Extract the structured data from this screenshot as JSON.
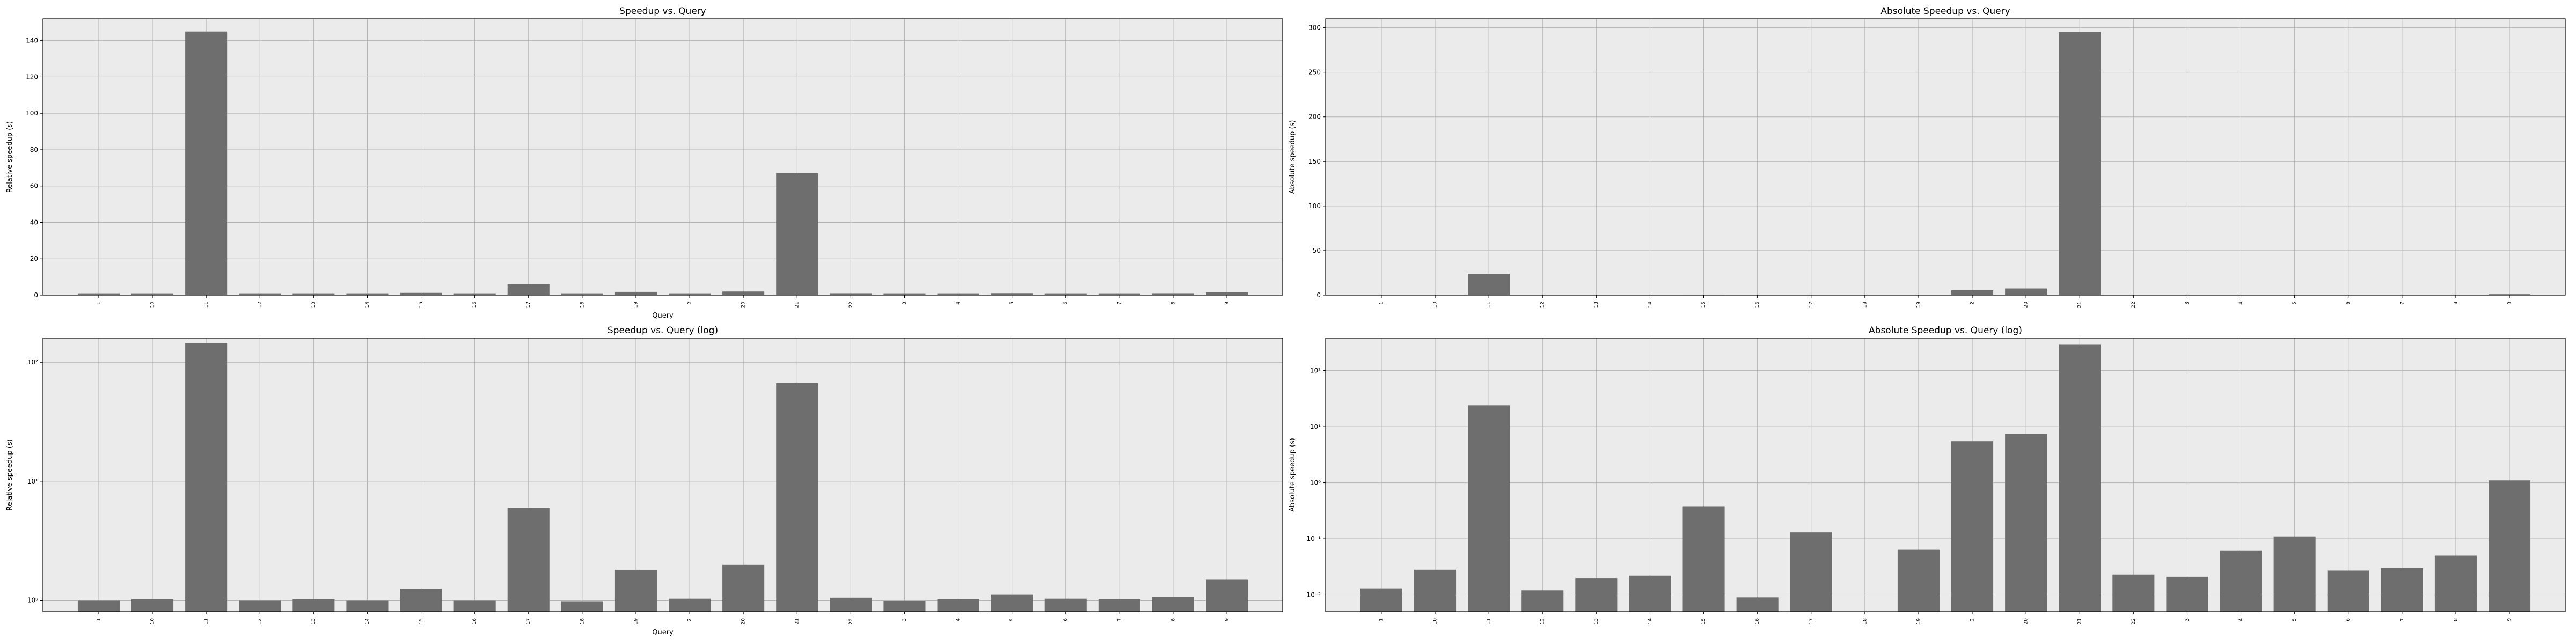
{
  "chart_data": [
    {
      "type": "bar",
      "title": "Speedup vs. Query",
      "xlabel": "Query",
      "ylabel": "Relative speedup (s)",
      "yscale": "linear",
      "ylim": [
        0,
        152
      ],
      "yticks": [
        0,
        20,
        40,
        60,
        80,
        100,
        120,
        140
      ],
      "grid": true,
      "categories": [
        "1",
        "10",
        "11",
        "12",
        "13",
        "14",
        "15",
        "16",
        "17",
        "18",
        "19",
        "2",
        "20",
        "21",
        "22",
        "3",
        "4",
        "5",
        "6",
        "7",
        "8",
        "9"
      ],
      "values": [
        1.0,
        1.0,
        145,
        1.0,
        1.0,
        1.0,
        1.25,
        1.0,
        6.0,
        1.0,
        1.8,
        1.0,
        2.0,
        67,
        1.05,
        1.0,
        1.0,
        1.1,
        1.0,
        1.0,
        1.05,
        1.5
      ]
    },
    {
      "type": "bar",
      "title": "Absolute Speedup vs. Query",
      "xlabel": "",
      "ylabel": "Absolute speedup (s)",
      "yscale": "linear",
      "ylim": [
        0,
        310
      ],
      "yticks": [
        0,
        50,
        100,
        150,
        200,
        250,
        300
      ],
      "grid": true,
      "categories": [
        "1",
        "10",
        "11",
        "12",
        "13",
        "14",
        "15",
        "16",
        "17",
        "18",
        "19",
        "2",
        "20",
        "21",
        "22",
        "3",
        "4",
        "5",
        "6",
        "7",
        "8",
        "9"
      ],
      "values": [
        0.013,
        0.028,
        24,
        0.012,
        0.02,
        0.022,
        0.38,
        0.009,
        0.13,
        0.005,
        0.065,
        5.5,
        7.5,
        295,
        0.023,
        0.021,
        0.062,
        0.11,
        0.027,
        0.03,
        0.05,
        1.1
      ]
    },
    {
      "type": "bar",
      "title": "Speedup vs. Query (log)",
      "xlabel": "Query",
      "ylabel": "Relative speedup (s)",
      "yscale": "log",
      "ylim": [
        0.8,
        160
      ],
      "yticks": [
        1,
        10,
        100
      ],
      "ytick_labels": [
        "10⁰",
        "10¹",
        "10²"
      ],
      "grid": true,
      "categories": [
        "1",
        "10",
        "11",
        "12",
        "13",
        "14",
        "15",
        "16",
        "17",
        "18",
        "19",
        "2",
        "20",
        "21",
        "22",
        "3",
        "4",
        "5",
        "6",
        "7",
        "8",
        "9"
      ],
      "values": [
        1.0,
        1.02,
        145,
        1.0,
        1.02,
        1.0,
        1.25,
        1.0,
        6.0,
        0.98,
        1.8,
        1.03,
        2.0,
        67,
        1.05,
        0.99,
        1.02,
        1.12,
        1.03,
        1.02,
        1.07,
        1.5
      ]
    },
    {
      "type": "bar",
      "title": "Absolute Speedup vs. Query (log)",
      "xlabel": "",
      "ylabel": "Absolute speedup (s)",
      "yscale": "log",
      "ylim": [
        0.005,
        380
      ],
      "yticks": [
        0.01,
        0.1,
        1,
        10,
        100
      ],
      "ytick_labels": [
        "10⁻²",
        "10⁻¹",
        "10⁰",
        "10¹",
        "10²"
      ],
      "grid": true,
      "categories": [
        "1",
        "10",
        "11",
        "12",
        "13",
        "14",
        "15",
        "16",
        "17",
        "18",
        "19",
        "2",
        "20",
        "21",
        "22",
        "3",
        "4",
        "5",
        "6",
        "7",
        "8",
        "9"
      ],
      "values": [
        0.013,
        0.028,
        24,
        0.012,
        0.02,
        0.022,
        0.38,
        0.009,
        0.13,
        0.005,
        0.065,
        5.5,
        7.5,
        295,
        0.023,
        0.021,
        0.062,
        0.11,
        0.027,
        0.03,
        0.05,
        1.1
      ]
    }
  ]
}
